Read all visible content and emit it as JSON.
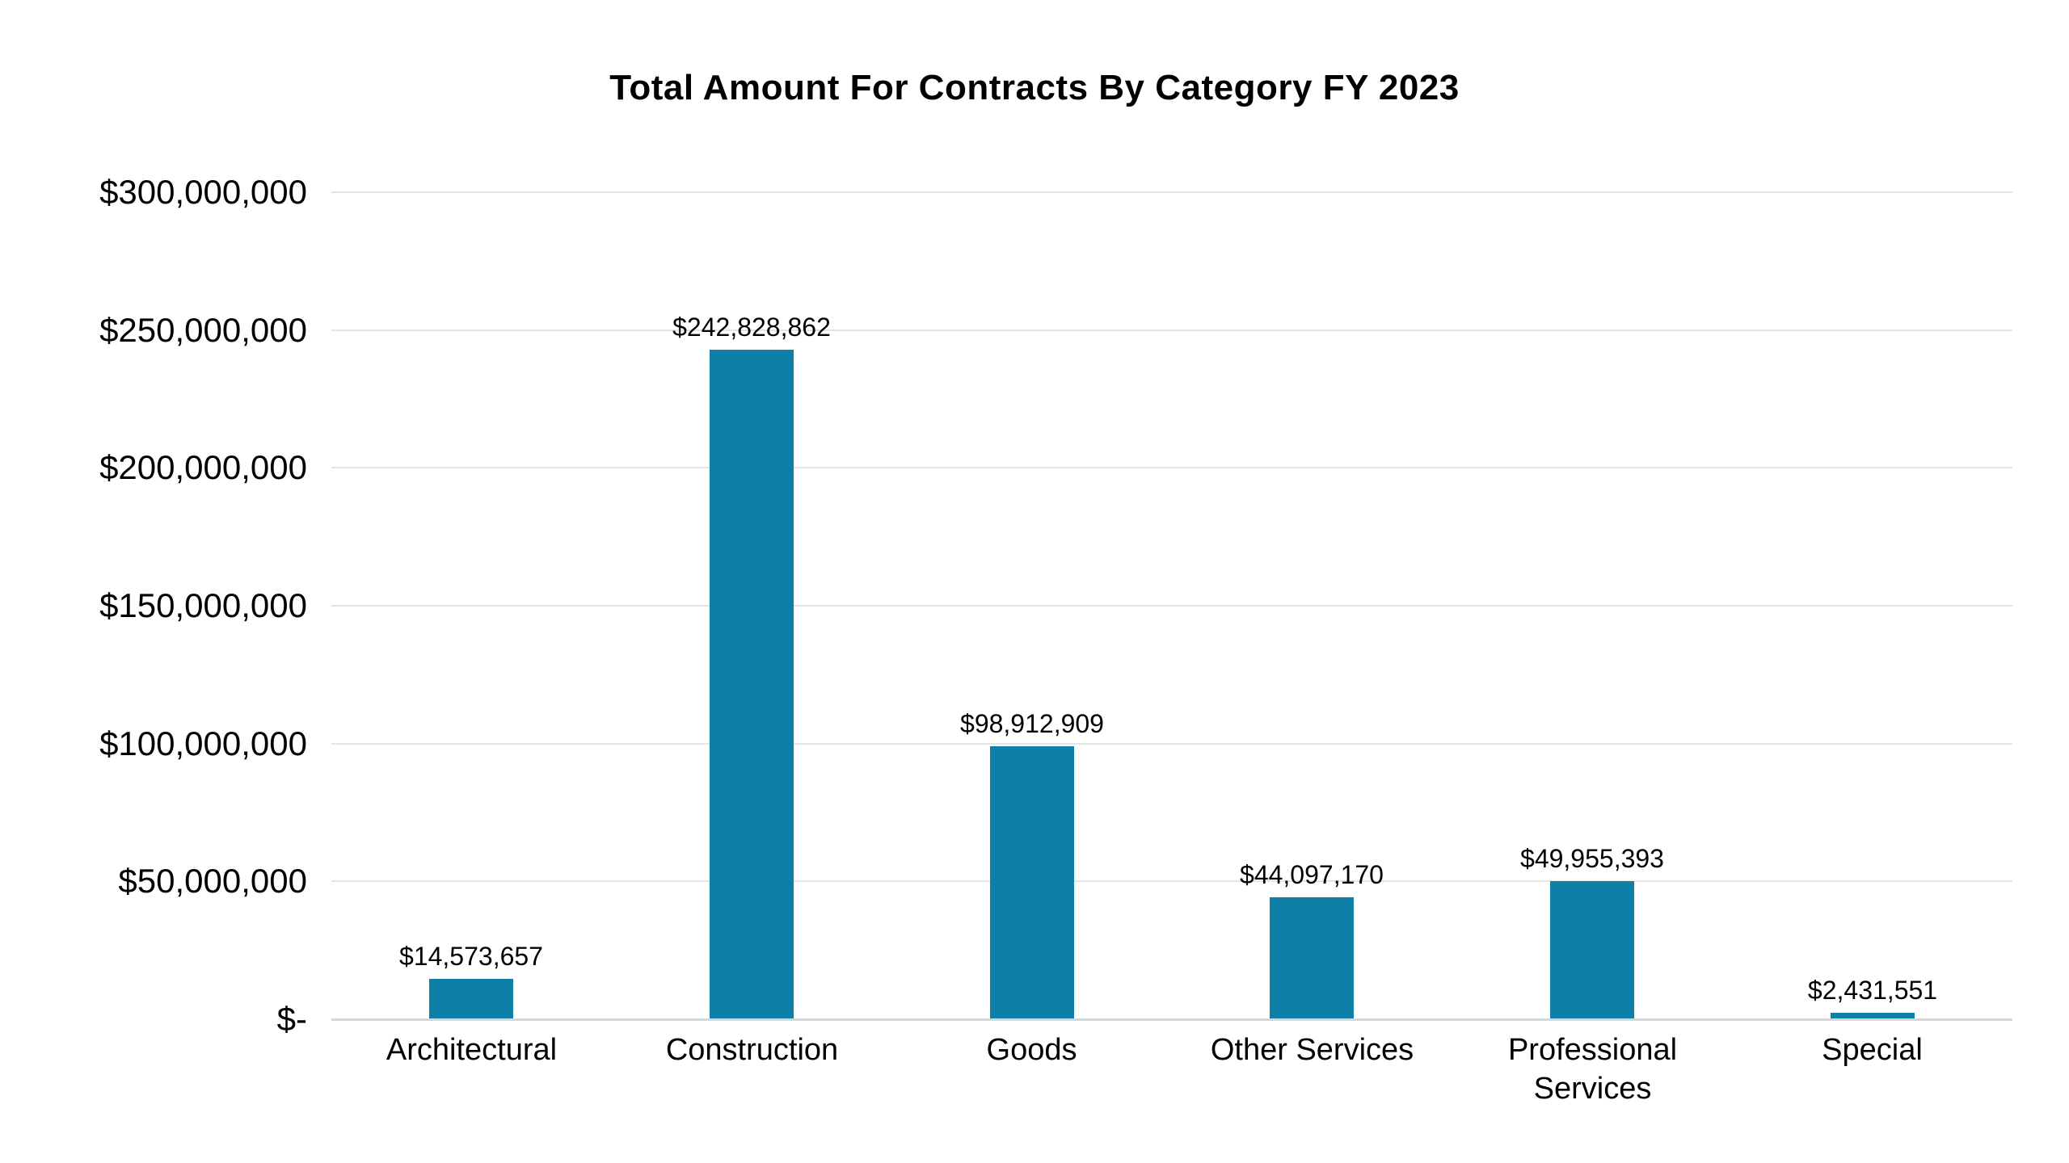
{
  "page": {
    "background_color": "#ffffff",
    "text_color": "#000000"
  },
  "chart_data": {
    "type": "bar",
    "title": "Total Amount For Contracts By Category FY 2023",
    "categories": [
      "Architectural",
      "Construction",
      "Goods",
      "Other Services",
      "Professional Services",
      "Special"
    ],
    "values": [
      14573657,
      242828862,
      98912909,
      44097170,
      49955393,
      2431551
    ],
    "value_labels": [
      "$14,573,657",
      "$242,828,862",
      "$98,912,909",
      "$44,097,170",
      "$49,955,393",
      "$2,431,551"
    ],
    "xlabel": "",
    "ylabel": "",
    "ylim": [
      0,
      300000000
    ],
    "y_tick_values": [
      300000000,
      250000000,
      200000000,
      150000000,
      100000000,
      50000000,
      0
    ],
    "y_tick_labels": [
      "$300,000,000",
      "$250,000,000",
      "$200,000,000",
      "$150,000,000",
      "$100,000,000",
      "$50,000,000",
      "$-"
    ],
    "grid": "horizontal",
    "legend": "none",
    "bar_color": "#0e80a8",
    "gridline_color": "#e4e4e4",
    "baseline_color": "#d6d6d6"
  }
}
